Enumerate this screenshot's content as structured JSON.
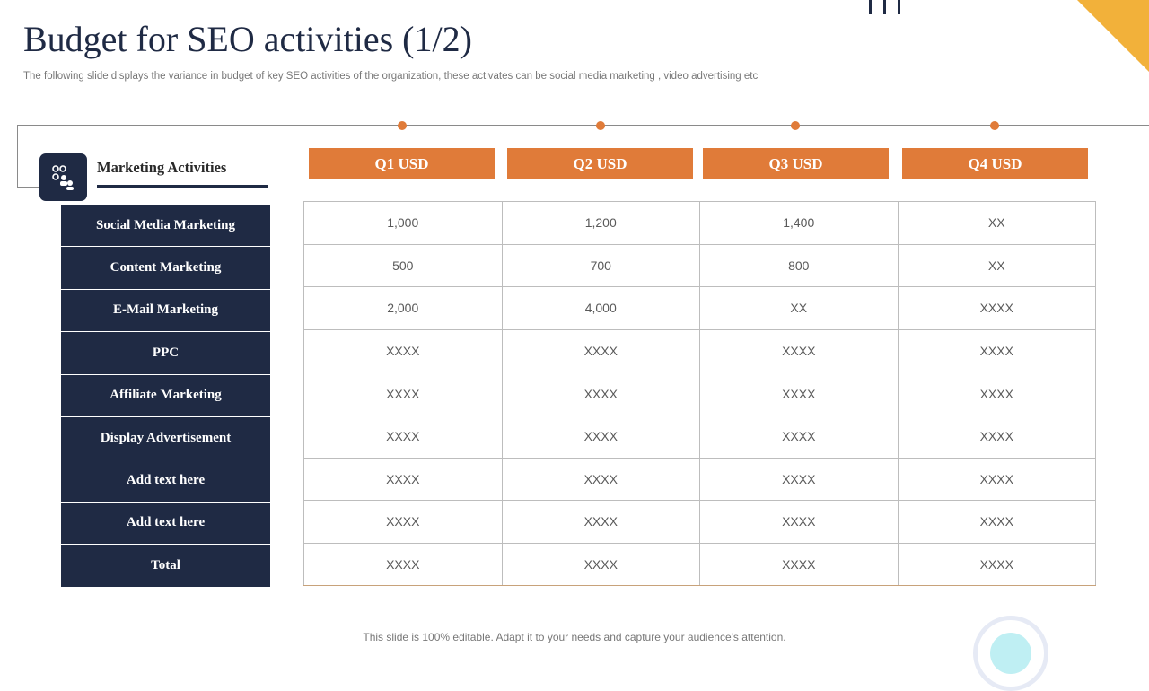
{
  "title": "Budget for SEO activities (1/2)",
  "subtitle": "The following slide displays the variance in budget of key SEO activities of the organization, these activates can be social media marketing , video advertising etc",
  "marketing_header": "Marketing Activities",
  "icon": "network-people-icon",
  "colors": {
    "navy": "#1f2a44",
    "orange": "#e07b39",
    "gold": "#f2b13a"
  },
  "quarters": [
    "Q1 USD",
    "Q2 USD",
    "Q3 USD",
    "Q4 USD"
  ],
  "activities": [
    "Social Media Marketing",
    "Content Marketing",
    "E-Mail Marketing",
    "PPC",
    "Affiliate Marketing",
    "Display Advertisement",
    "Add text here",
    "Add text here",
    "Total"
  ],
  "table": [
    [
      "1,000",
      "1,200",
      "1,400",
      "XX"
    ],
    [
      "500",
      "700",
      "800",
      "XX"
    ],
    [
      "2,000",
      "4,000",
      "XX",
      "XXXX"
    ],
    [
      "XXXX",
      "XXXX",
      "XXXX",
      "XXXX"
    ],
    [
      "XXXX",
      "XXXX",
      "XXXX",
      "XXXX"
    ],
    [
      "XXXX",
      "XXXX",
      "XXXX",
      "XXXX"
    ],
    [
      "XXXX",
      "XXXX",
      "XXXX",
      "XXXX"
    ],
    [
      "XXXX",
      "XXXX",
      "XXXX",
      "XXXX"
    ],
    [
      "XXXX",
      "XXXX",
      "XXXX",
      "XXXX"
    ]
  ],
  "footer": "This slide is 100% editable. Adapt it to your needs and capture your audience's attention."
}
